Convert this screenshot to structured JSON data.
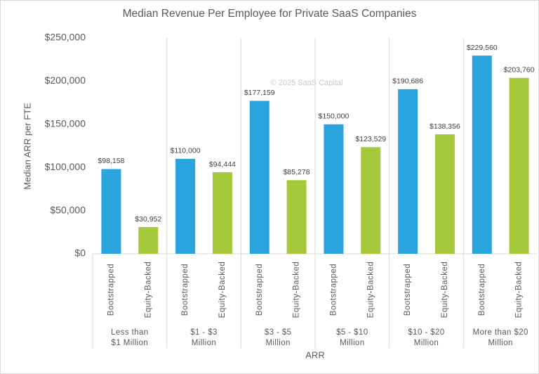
{
  "chart_data": {
    "type": "grouped-bar",
    "title": "Median Revenue Per Employee for Private SaaS Companies",
    "y_label": "Median ARR per FTE",
    "x_label": "ARR",
    "annotation": "© 2025 SaaS Capital",
    "bar_colors": [
      "#29a4dd",
      "#a6c93c"
    ],
    "grid": false,
    "ylim": [
      0,
      250000
    ],
    "yticks": [
      {
        "value": 0,
        "label": "$0"
      },
      {
        "value": 50000,
        "label": "$50,000"
      },
      {
        "value": 100000,
        "label": "$100,000"
      },
      {
        "value": 150000,
        "label": "$150,000"
      },
      {
        "value": 200000,
        "label": "$200,000"
      },
      {
        "value": 250000,
        "label": "$250,000"
      }
    ],
    "groups": [
      {
        "label_lines": [
          "Less than",
          "$1 Million"
        ],
        "categories": [
          "Bootstrapped",
          "Equity-Backed"
        ],
        "values": [
          98158,
          30952
        ],
        "value_labels": [
          "$98,158",
          "$30,952"
        ]
      },
      {
        "label_lines": [
          "$1 - $3",
          "Million"
        ],
        "categories": [
          "Bootstrapped",
          "Equity-Backed"
        ],
        "values": [
          110000,
          94444
        ],
        "value_labels": [
          "$110,000",
          "$94,444"
        ]
      },
      {
        "label_lines": [
          "$3 - $5",
          "Million"
        ],
        "categories": [
          "Bootstrapped",
          "Equity-Backed"
        ],
        "values": [
          177159,
          85278
        ],
        "value_labels": [
          "$177,159",
          "$85,278"
        ]
      },
      {
        "label_lines": [
          "$5 - $10",
          "Million"
        ],
        "categories": [
          "Bootstrapped",
          "Equity-Backed"
        ],
        "values": [
          150000,
          123529
        ],
        "value_labels": [
          "$150,000",
          "$123,529"
        ]
      },
      {
        "label_lines": [
          "$10 - $20",
          "Million"
        ],
        "categories": [
          "Bootstrapped",
          "Equity-Backed"
        ],
        "values": [
          190686,
          138356
        ],
        "value_labels": [
          "$190,686",
          "$138,356"
        ]
      },
      {
        "label_lines": [
          "More than $20",
          "Million"
        ],
        "categories": [
          "Bootstrapped",
          "Equity-Backed"
        ],
        "values": [
          229560,
          203760
        ],
        "value_labels": [
          "$229,560",
          "$203,760"
        ]
      }
    ]
  }
}
